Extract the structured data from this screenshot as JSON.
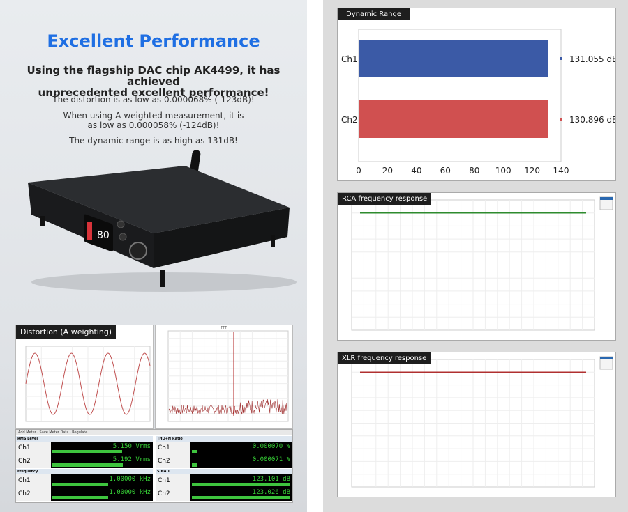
{
  "left": {
    "title": "Excellent Performance",
    "subtitle_line1": "Using the flagship DAC chip AK4499, it has achieved",
    "subtitle_line2": "unprecedented excellent performance!",
    "para1": "The distortion is as low as 0.000068% (-123dB)!",
    "para2_line1": "When using A-weighted measurement, it is",
    "para2_line2": "as low as 0.000058% (-124dB)!",
    "para3": "The dynamic range is as high as 131dB!",
    "device_display": "80",
    "distortion_label": "Distortion (A weighting)",
    "fft_title": "FFT"
  },
  "meter": {
    "toolbar": "Add Meter  ·  Save Meter Data  ·  Regulate",
    "groups": [
      {
        "name": "RMS Level",
        "ch1_value": "5.150",
        "ch2_value": "5.192",
        "unit": "Vrms"
      },
      {
        "name": "THD+N Ratio",
        "ch1_value": "0.000070",
        "ch2_value": "0.000071",
        "unit": "%"
      },
      {
        "name": "Frequency",
        "ch1_value": "1.00000",
        "ch2_value": "1.00000",
        "unit": "kHz"
      },
      {
        "name": "SINAD",
        "ch1_value": "123.101",
        "ch2_value": "123.026",
        "unit": "dB"
      }
    ],
    "ch1": "Ch1",
    "ch2": "Ch2"
  },
  "right": {
    "dynamic_range_label": "Dynamic Range",
    "rca_label": "RCA frequency response",
    "xlr_label": "XLR frequency response"
  },
  "chart_data": [
    {
      "type": "bar",
      "title": "Dynamic Range",
      "categories": [
        "Ch1",
        "Ch2"
      ],
      "values": [
        131.055,
        130.896
      ],
      "value_labels": [
        "131.055 dB",
        "130.896 dB"
      ],
      "colors": [
        "#3b5aa6",
        "#d05050"
      ],
      "xlim": [
        0,
        140
      ],
      "xticks": [
        0,
        20,
        40,
        60,
        80,
        100,
        120,
        140
      ],
      "orientation": "horizontal"
    },
    {
      "type": "line",
      "title": "RCA frequency response",
      "series": [
        {
          "color": "#2e8b2e",
          "values": [
            0,
            0,
            0,
            0,
            0
          ]
        }
      ],
      "ylim": [
        -90,
        10
      ]
    },
    {
      "type": "line",
      "title": "XLR frequency response",
      "series": [
        {
          "color": "#b03030",
          "values": [
            0,
            0,
            0,
            0,
            0
          ]
        }
      ],
      "ylim": [
        -90,
        10
      ]
    }
  ]
}
